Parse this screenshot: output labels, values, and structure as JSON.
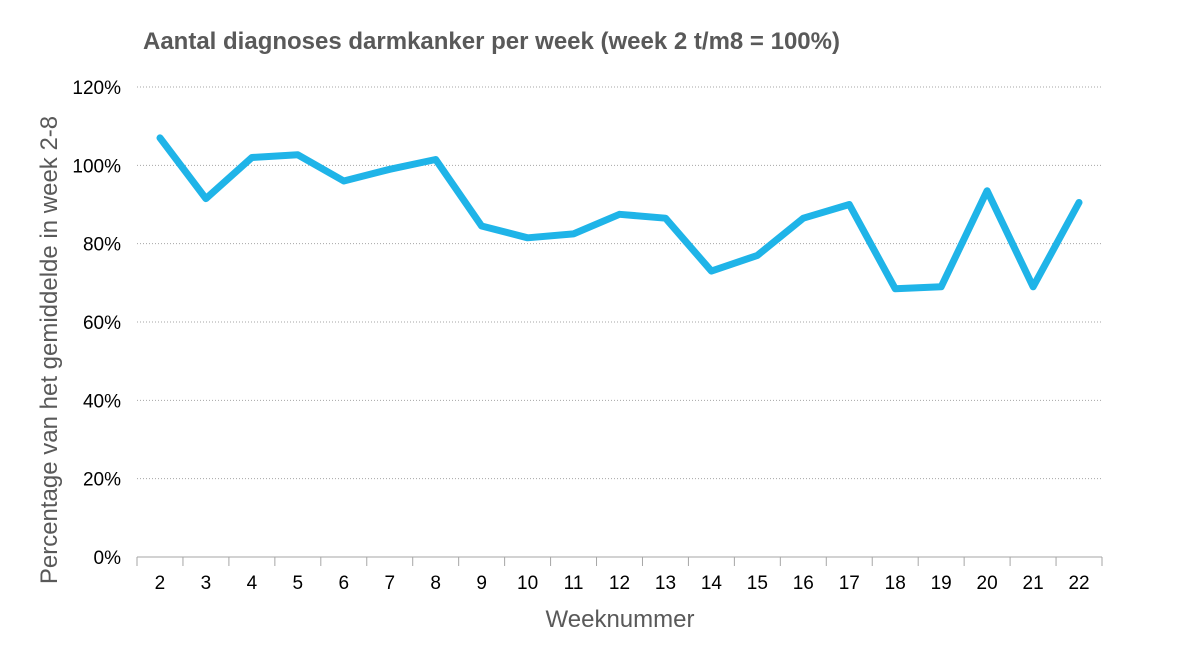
{
  "chart_data": {
    "type": "line",
    "title": "Aantal diagnoses darmkanker per week (week 2 t/m8 = 100%)",
    "xlabel": "Weeknummer",
    "ylabel": "Percentage van het gemiddelde in week 2-8",
    "categories": [
      "2",
      "3",
      "4",
      "5",
      "6",
      "7",
      "8",
      "9",
      "10",
      "11",
      "12",
      "13",
      "14",
      "15",
      "16",
      "17",
      "18",
      "19",
      "20",
      "21",
      "22"
    ],
    "series": [
      {
        "values": [
          107,
          91.5,
          102,
          102.7,
          96,
          99,
          101.5,
          84.5,
          81.5,
          82.5,
          87.5,
          86.5,
          73,
          77,
          86.5,
          90,
          68.5,
          69,
          93.5,
          69,
          90.5
        ],
        "color": "#1fb4e8"
      }
    ],
    "ylim": [
      0,
      120
    ],
    "yticks": [
      0,
      20,
      40,
      60,
      80,
      100,
      120
    ],
    "ytick_suffix": "%",
    "grid": true
  }
}
